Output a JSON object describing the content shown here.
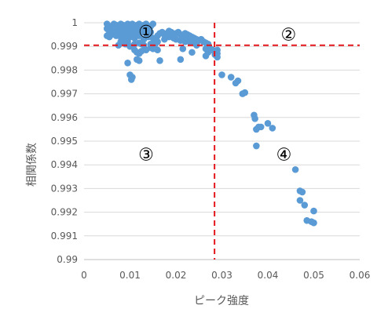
{
  "chart_data": {
    "type": "scatter",
    "xlabel": "ピーク強度",
    "ylabel": "相関係数",
    "xlim": [
      0,
      0.06
    ],
    "ylim": [
      0.99,
      1
    ],
    "x_ticks": [
      0,
      0.01,
      0.02,
      0.03,
      0.04,
      0.05,
      0.06
    ],
    "x_tick_labels": [
      "0",
      "0.01",
      "0.02",
      "0.03",
      "0.04",
      "0.05",
      "0.06"
    ],
    "y_ticks": [
      0.99,
      0.991,
      0.992,
      0.993,
      0.994,
      0.995,
      0.996,
      0.997,
      0.998,
      0.999,
      1
    ],
    "y_tick_labels": [
      "0.99",
      "0.991",
      "0.992",
      "0.993",
      "0.994",
      "0.995",
      "0.996",
      "0.997",
      "0.998",
      "0.999",
      "1"
    ],
    "grid": "horizontal",
    "threshold_lines": [
      {
        "orientation": "vertical",
        "value": 0.0284,
        "color": "#e3161b",
        "style": "dashed"
      },
      {
        "orientation": "horizontal",
        "value": 0.99905,
        "color": "#e3161b",
        "style": "dashed"
      }
    ],
    "marker_color": "#5b9bd5",
    "region_labels": [
      {
        "text": "①",
        "x": 0.0135,
        "y": 0.99963
      },
      {
        "text": "②",
        "x": 0.0445,
        "y": 0.99952
      },
      {
        "text": "③",
        "x": 0.0135,
        "y": 0.99445
      },
      {
        "text": "④",
        "x": 0.0435,
        "y": 0.99445
      }
    ],
    "points": [
      [
        0.005,
        0.99995
      ],
      [
        0.006,
        0.99985
      ],
      [
        0.0065,
        0.99995
      ],
      [
        0.007,
        0.9999
      ],
      [
        0.0075,
        0.9998
      ],
      [
        0.008,
        0.99995
      ],
      [
        0.0085,
        0.9999
      ],
      [
        0.009,
        0.99985
      ],
      [
        0.0095,
        0.99995
      ],
      [
        0.01,
        0.9999
      ],
      [
        0.0105,
        0.99995
      ],
      [
        0.011,
        0.9998
      ],
      [
        0.0115,
        0.9999
      ],
      [
        0.012,
        0.99995
      ],
      [
        0.0125,
        0.99985
      ],
      [
        0.013,
        0.9999
      ],
      [
        0.0135,
        0.99995
      ],
      [
        0.014,
        0.9998
      ],
      [
        0.0145,
        0.99985
      ],
      [
        0.015,
        0.99995
      ],
      [
        0.005,
        0.99975
      ],
      [
        0.0055,
        0.99965
      ],
      [
        0.006,
        0.9997
      ],
      [
        0.0065,
        0.9996
      ],
      [
        0.007,
        0.99965
      ],
      [
        0.0075,
        0.99955
      ],
      [
        0.008,
        0.9997
      ],
      [
        0.0085,
        0.9996
      ],
      [
        0.009,
        0.99965
      ],
      [
        0.0095,
        0.9995
      ],
      [
        0.01,
        0.9997
      ],
      [
        0.0105,
        0.9996
      ],
      [
        0.011,
        0.99965
      ],
      [
        0.0115,
        0.99955
      ],
      [
        0.012,
        0.9997
      ],
      [
        0.0125,
        0.9996
      ],
      [
        0.013,
        0.99965
      ],
      [
        0.0135,
        0.99955
      ],
      [
        0.014,
        0.9997
      ],
      [
        0.0145,
        0.9996
      ],
      [
        0.005,
        0.99945
      ],
      [
        0.0055,
        0.9994
      ],
      [
        0.006,
        0.9995
      ],
      [
        0.007,
        0.99945
      ],
      [
        0.008,
        0.9994
      ],
      [
        0.0085,
        0.99935
      ],
      [
        0.009,
        0.99945
      ],
      [
        0.0095,
        0.9993
      ],
      [
        0.01,
        0.9994
      ],
      [
        0.011,
        0.99935
      ],
      [
        0.012,
        0.99945
      ],
      [
        0.013,
        0.9993
      ],
      [
        0.014,
        0.9994
      ],
      [
        0.015,
        0.99935
      ],
      [
        0.0155,
        0.99925
      ],
      [
        0.016,
        0.99945
      ],
      [
        0.0165,
        0.99955
      ],
      [
        0.017,
        0.9996
      ],
      [
        0.0175,
        0.9995
      ],
      [
        0.018,
        0.99955
      ],
      [
        0.0185,
        0.99965
      ],
      [
        0.019,
        0.9996
      ],
      [
        0.0195,
        0.9995
      ],
      [
        0.02,
        0.99955
      ],
      [
        0.0205,
        0.9996
      ],
      [
        0.021,
        0.9995
      ],
      [
        0.0215,
        0.99945
      ],
      [
        0.022,
        0.99955
      ],
      [
        0.0225,
        0.9995
      ],
      [
        0.023,
        0.99945
      ],
      [
        0.0235,
        0.9994
      ],
      [
        0.024,
        0.99935
      ],
      [
        0.0245,
        0.9993
      ],
      [
        0.025,
        0.99925
      ],
      [
        0.0255,
        0.9993
      ],
      [
        0.026,
        0.9992
      ],
      [
        0.0265,
        0.99915
      ],
      [
        0.027,
        0.9991
      ],
      [
        0.0185,
        0.9994
      ],
      [
        0.0195,
        0.99935
      ],
      [
        0.02,
        0.9993
      ],
      [
        0.021,
        0.99925
      ],
      [
        0.022,
        0.9992
      ],
      [
        0.0225,
        0.99935
      ],
      [
        0.023,
        0.9992
      ],
      [
        0.024,
        0.99915
      ],
      [
        0.0245,
        0.99905
      ],
      [
        0.0175,
        0.9993
      ],
      [
        0.016,
        0.9992
      ],
      [
        0.0155,
        0.9991
      ],
      [
        0.0145,
        0.9991
      ],
      [
        0.013,
        0.99905
      ],
      [
        0.011,
        0.9991
      ],
      [
        0.01,
        0.999
      ],
      [
        0.009,
        0.9991
      ],
      [
        0.0075,
        0.99905
      ],
      [
        0.012,
        0.99915
      ],
      [
        0.008,
        0.9992
      ],
      [
        0.0095,
        0.9992
      ],
      [
        0.0125,
        0.9991
      ],
      [
        0.0265,
        0.9989
      ],
      [
        0.027,
        0.9988
      ],
      [
        0.0275,
        0.9989
      ],
      [
        0.028,
        0.99885
      ],
      [
        0.0285,
        0.99875
      ],
      [
        0.029,
        0.9987
      ],
      [
        0.0285,
        0.9988
      ],
      [
        0.0265,
        0.9986
      ],
      [
        0.027,
        0.99875
      ],
      [
        0.029,
        0.99885
      ],
      [
        0.0215,
        0.9989
      ],
      [
        0.0235,
        0.99875
      ],
      [
        0.016,
        0.99885
      ],
      [
        0.011,
        0.99885
      ],
      [
        0.0115,
        0.99875
      ],
      [
        0.012,
        0.9987
      ],
      [
        0.0125,
        0.9988
      ],
      [
        0.0145,
        0.99895
      ],
      [
        0.015,
        0.9989
      ],
      [
        0.0135,
        0.99885
      ],
      [
        0.0285,
        0.99865
      ],
      [
        0.029,
        0.99855
      ],
      [
        0.0115,
        0.99845
      ],
      [
        0.012,
        0.9984
      ],
      [
        0.0095,
        0.9983
      ],
      [
        0.01,
        0.9978
      ],
      [
        0.0105,
        0.9977
      ],
      [
        0.0103,
        0.9976
      ],
      [
        0.0165,
        0.9984
      ],
      [
        0.021,
        0.99845
      ],
      [
        0.03,
        0.9978
      ],
      [
        0.032,
        0.9977
      ],
      [
        0.033,
        0.99745
      ],
      [
        0.0335,
        0.99755
      ],
      [
        0.0345,
        0.997
      ],
      [
        0.035,
        0.99705
      ],
      [
        0.037,
        0.9961
      ],
      [
        0.0372,
        0.99595
      ],
      [
        0.038,
        0.9956
      ],
      [
        0.0375,
        0.9955
      ],
      [
        0.0385,
        0.9956
      ],
      [
        0.04,
        0.99575
      ],
      [
        0.041,
        0.99555
      ],
      [
        0.0375,
        0.9948
      ],
      [
        0.046,
        0.9938
      ],
      [
        0.047,
        0.9929
      ],
      [
        0.0475,
        0.99285
      ],
      [
        0.047,
        0.9925
      ],
      [
        0.048,
        0.9923
      ],
      [
        0.05,
        0.99205
      ],
      [
        0.0485,
        0.99165
      ],
      [
        0.0495,
        0.9916
      ],
      [
        0.05,
        0.99155
      ]
    ]
  }
}
